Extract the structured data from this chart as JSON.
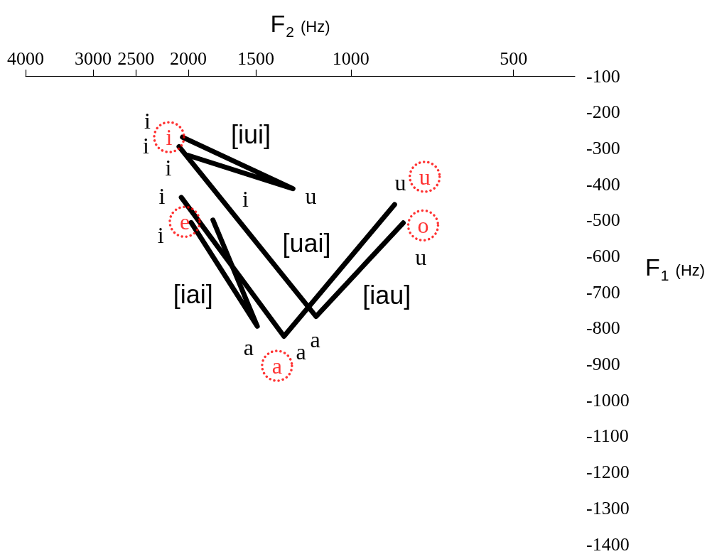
{
  "chart_data": {
    "type": "line",
    "xlabel": "F$_{2}$ (Hz)",
    "ylabel": "F$_{1}$ (Hz)",
    "log": "x",
    "xlim": [
      4000,
      385
    ],
    "xticks": [
      4000,
      3000,
      2500,
      2000,
      1500,
      1000,
      500
    ],
    "ylim": [
      -1400,
      -100
    ],
    "yticks": [
      -100,
      -200,
      -300,
      -400,
      -500,
      -600,
      -700,
      -800,
      -900,
      -1000,
      -1100,
      -1200,
      -1300,
      -1400
    ],
    "series": [
      {
        "type": "scatter",
        "color": "#ff0000",
        "marker": "circle",
        "x": [
          2170,
          2030,
          1370,
          735,
          730
        ],
        "values": [
          -270,
          -505,
          -905,
          -515,
          -380
        ],
        "value_labels": [
          "i",
          "e",
          "a",
          "o",
          "u"
        ]
      },
      {
        "name": "[iui]",
        "color": "#000000",
        "marker": "none",
        "x": [
          2050,
          1280,
          2005
        ],
        "values": [
          -270,
          -413,
          -320
        ],
        "value_labels": [
          "i",
          "u",
          "i"
        ]
      },
      {
        "name": "[iau]",
        "color": "#000000",
        "marker": "none",
        "x": [
          2080,
          1160,
          800
        ],
        "values": [
          -296,
          -768,
          -508
        ],
        "value_labels": [
          "i",
          "a",
          "u"
        ]
      },
      {
        "name": "[uai]",
        "color": "#000000",
        "marker": "none",
        "x": [
          830,
          1330,
          2060
        ],
        "values": [
          -457,
          -823,
          -437
        ],
        "value_labels": [
          "u",
          "a",
          "i"
        ]
      },
      {
        "name": "[iai]",
        "color": "#000000",
        "marker": "none",
        "x": [
          1800,
          1490,
          1975
        ],
        "values": [
          -500,
          -795,
          -507
        ],
        "value_labels": [
          "i",
          "a",
          "i"
        ]
      }
    ]
  }
}
